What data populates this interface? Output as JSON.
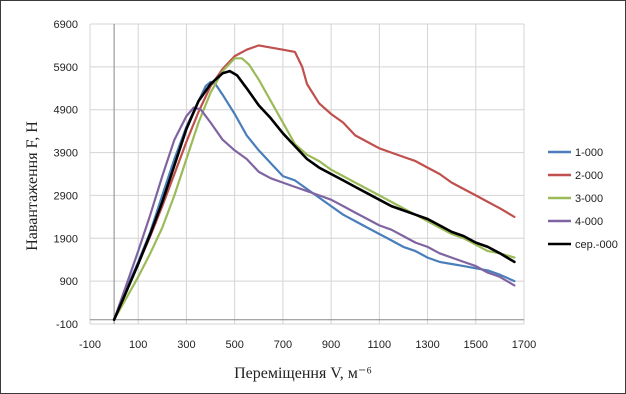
{
  "chart_data": {
    "type": "line",
    "xlabel": "Переміщення V, м⁻⁶",
    "ylabel": "Навантаження F, Н",
    "xlim": [
      -100,
      1700
    ],
    "ylim": [
      -100,
      6900
    ],
    "x_ticks": [
      "-100",
      "100",
      "300",
      "500",
      "700",
      "900",
      "1100",
      "1300",
      "1500",
      "1700"
    ],
    "y_ticks": [
      "-100",
      "900",
      "1900",
      "2900",
      "3900",
      "4900",
      "5900",
      "6900"
    ],
    "grid": true,
    "legend_position": "right",
    "series": [
      {
        "name": "1-000",
        "color": "#4a7ebb",
        "points": [
          [
            0,
            0
          ],
          [
            50,
            700
          ],
          [
            100,
            1350
          ],
          [
            150,
            2050
          ],
          [
            200,
            2900
          ],
          [
            250,
            3750
          ],
          [
            300,
            4500
          ],
          [
            350,
            5100
          ],
          [
            380,
            5450
          ],
          [
            400,
            5550
          ],
          [
            420,
            5500
          ],
          [
            450,
            5250
          ],
          [
            500,
            4800
          ],
          [
            550,
            4300
          ],
          [
            600,
            3950
          ],
          [
            650,
            3650
          ],
          [
            700,
            3350
          ],
          [
            750,
            3250
          ],
          [
            800,
            3050
          ],
          [
            850,
            2850
          ],
          [
            900,
            2650
          ],
          [
            950,
            2450
          ],
          [
            1000,
            2300
          ],
          [
            1050,
            2150
          ],
          [
            1100,
            2000
          ],
          [
            1150,
            1850
          ],
          [
            1200,
            1700
          ],
          [
            1250,
            1600
          ],
          [
            1300,
            1450
          ],
          [
            1350,
            1350
          ],
          [
            1400,
            1300
          ],
          [
            1450,
            1250
          ],
          [
            1500,
            1200
          ],
          [
            1550,
            1150
          ],
          [
            1600,
            1050
          ],
          [
            1660,
            900
          ]
        ]
      },
      {
        "name": "2-000",
        "color": "#c0504d",
        "points": [
          [
            0,
            0
          ],
          [
            50,
            650
          ],
          [
            100,
            1300
          ],
          [
            150,
            1950
          ],
          [
            200,
            2650
          ],
          [
            250,
            3400
          ],
          [
            300,
            4150
          ],
          [
            350,
            4850
          ],
          [
            400,
            5450
          ],
          [
            450,
            5850
          ],
          [
            500,
            6150
          ],
          [
            550,
            6300
          ],
          [
            600,
            6400
          ],
          [
            650,
            6350
          ],
          [
            700,
            6300
          ],
          [
            750,
            6250
          ],
          [
            780,
            5900
          ],
          [
            800,
            5500
          ],
          [
            850,
            5050
          ],
          [
            900,
            4800
          ],
          [
            950,
            4600
          ],
          [
            1000,
            4300
          ],
          [
            1050,
            4150
          ],
          [
            1100,
            4000
          ],
          [
            1150,
            3900
          ],
          [
            1200,
            3800
          ],
          [
            1250,
            3700
          ],
          [
            1300,
            3550
          ],
          [
            1350,
            3400
          ],
          [
            1400,
            3200
          ],
          [
            1450,
            3050
          ],
          [
            1500,
            2900
          ],
          [
            1550,
            2750
          ],
          [
            1600,
            2600
          ],
          [
            1660,
            2400
          ]
        ]
      },
      {
        "name": "3-000",
        "color": "#9bbb59",
        "points": [
          [
            0,
            0
          ],
          [
            50,
            500
          ],
          [
            100,
            1000
          ],
          [
            150,
            1550
          ],
          [
            200,
            2150
          ],
          [
            250,
            2900
          ],
          [
            300,
            3750
          ],
          [
            350,
            4600
          ],
          [
            400,
            5300
          ],
          [
            450,
            5800
          ],
          [
            500,
            6100
          ],
          [
            530,
            6100
          ],
          [
            560,
            5950
          ],
          [
            600,
            5600
          ],
          [
            650,
            5100
          ],
          [
            700,
            4600
          ],
          [
            750,
            4100
          ],
          [
            800,
            3850
          ],
          [
            850,
            3700
          ],
          [
            900,
            3500
          ],
          [
            950,
            3350
          ],
          [
            1000,
            3200
          ],
          [
            1050,
            3050
          ],
          [
            1100,
            2900
          ],
          [
            1150,
            2750
          ],
          [
            1200,
            2600
          ],
          [
            1250,
            2450
          ],
          [
            1300,
            2300
          ],
          [
            1350,
            2150
          ],
          [
            1400,
            2000
          ],
          [
            1450,
            1900
          ],
          [
            1500,
            1750
          ],
          [
            1550,
            1600
          ],
          [
            1600,
            1550
          ],
          [
            1660,
            1450
          ]
        ]
      },
      {
        "name": "4-000",
        "color": "#8064a2",
        "points": [
          [
            0,
            0
          ],
          [
            50,
            800
          ],
          [
            100,
            1600
          ],
          [
            150,
            2450
          ],
          [
            200,
            3350
          ],
          [
            250,
            4200
          ],
          [
            300,
            4750
          ],
          [
            330,
            4950
          ],
          [
            360,
            4900
          ],
          [
            400,
            4600
          ],
          [
            450,
            4200
          ],
          [
            500,
            3950
          ],
          [
            550,
            3750
          ],
          [
            600,
            3450
          ],
          [
            650,
            3300
          ],
          [
            700,
            3200
          ],
          [
            750,
            3100
          ],
          [
            800,
            3000
          ],
          [
            850,
            2900
          ],
          [
            900,
            2800
          ],
          [
            950,
            2650
          ],
          [
            1000,
            2500
          ],
          [
            1050,
            2350
          ],
          [
            1100,
            2200
          ],
          [
            1150,
            2100
          ],
          [
            1200,
            1950
          ],
          [
            1250,
            1800
          ],
          [
            1300,
            1700
          ],
          [
            1350,
            1550
          ],
          [
            1400,
            1450
          ],
          [
            1450,
            1350
          ],
          [
            1500,
            1250
          ],
          [
            1550,
            1100
          ],
          [
            1600,
            1000
          ],
          [
            1660,
            800
          ]
        ]
      },
      {
        "name": "сер.-000",
        "color": "#000000",
        "points": [
          [
            0,
            0
          ],
          [
            50,
            650
          ],
          [
            100,
            1300
          ],
          [
            150,
            2000
          ],
          [
            200,
            2750
          ],
          [
            250,
            3600
          ],
          [
            300,
            4450
          ],
          [
            350,
            5100
          ],
          [
            400,
            5500
          ],
          [
            450,
            5750
          ],
          [
            480,
            5800
          ],
          [
            510,
            5700
          ],
          [
            550,
            5400
          ],
          [
            600,
            5000
          ],
          [
            650,
            4700
          ],
          [
            700,
            4350
          ],
          [
            750,
            4050
          ],
          [
            800,
            3750
          ],
          [
            850,
            3550
          ],
          [
            900,
            3400
          ],
          [
            950,
            3250
          ],
          [
            1000,
            3100
          ],
          [
            1050,
            2950
          ],
          [
            1100,
            2800
          ],
          [
            1150,
            2650
          ],
          [
            1200,
            2550
          ],
          [
            1250,
            2450
          ],
          [
            1300,
            2350
          ],
          [
            1350,
            2200
          ],
          [
            1400,
            2050
          ],
          [
            1450,
            1950
          ],
          [
            1500,
            1800
          ],
          [
            1550,
            1700
          ],
          [
            1600,
            1550
          ],
          [
            1660,
            1350
          ]
        ]
      }
    ]
  }
}
